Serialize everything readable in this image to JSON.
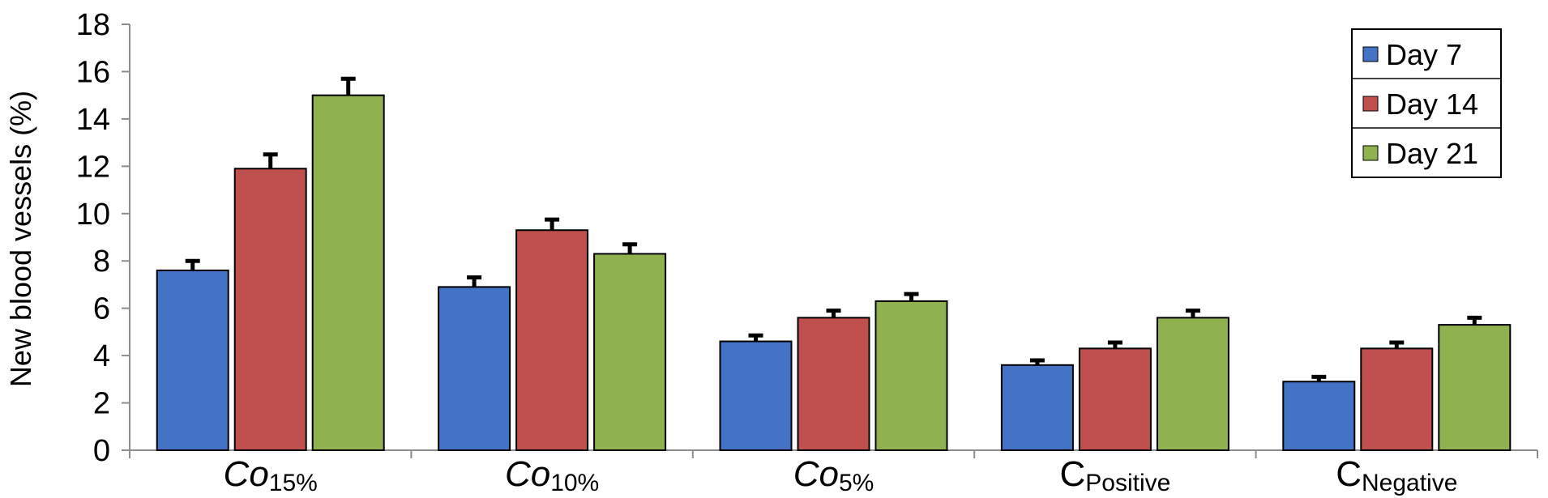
{
  "chart_data": {
    "type": "bar",
    "ylabel": "New blood vessels (%)",
    "xlabel": "",
    "ylim": [
      0,
      18
    ],
    "yticks": [
      0,
      2,
      4,
      6,
      8,
      10,
      12,
      14,
      16,
      18
    ],
    "grid": false,
    "legend_position": "top-right",
    "categories": [
      {
        "main": "Co",
        "sub": "15%",
        "italic": true
      },
      {
        "main": "Co",
        "sub": "10%",
        "italic": true
      },
      {
        "main": "Co",
        "sub": "5%",
        "italic": true
      },
      {
        "main": "C",
        "sub": "Positive",
        "italic": false
      },
      {
        "main": "C",
        "sub": "Negative",
        "italic": false
      }
    ],
    "series": [
      {
        "name": "Day 7",
        "color": "#4472C4",
        "values": [
          7.6,
          6.9,
          4.6,
          3.6,
          2.9
        ],
        "errors": [
          0.4,
          0.4,
          0.25,
          0.2,
          0.2
        ]
      },
      {
        "name": "Day 14",
        "color": "#C0504D",
        "values": [
          11.9,
          9.3,
          5.6,
          4.3,
          4.3
        ],
        "errors": [
          0.6,
          0.45,
          0.3,
          0.25,
          0.25
        ]
      },
      {
        "name": "Day 21",
        "color": "#8FB24F",
        "values": [
          15.0,
          8.3,
          6.3,
          5.6,
          5.3
        ],
        "errors": [
          0.7,
          0.4,
          0.3,
          0.3,
          0.3
        ]
      }
    ]
  }
}
